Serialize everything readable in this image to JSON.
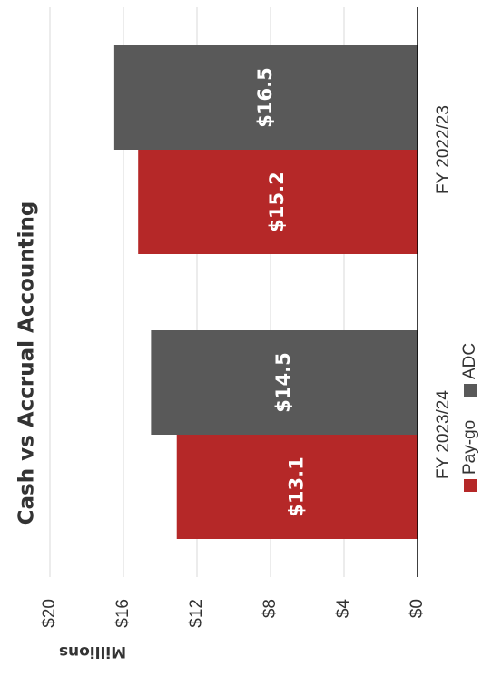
{
  "chart_data": {
    "type": "bar",
    "title": "Cash vs Accrual Accounting",
    "ylabel": "Millions",
    "xlabel": "",
    "categories": [
      "FY 2022/23",
      "FY 2023/24"
    ],
    "series": [
      {
        "name": "Pay-go",
        "values": [
          15.2,
          13.1
        ],
        "labels": [
          "$15.2",
          "$13.1"
        ],
        "color": "#b52828"
      },
      {
        "name": "ADC",
        "values": [
          16.5,
          14.5
        ],
        "labels": [
          "$16.5",
          "$14.5"
        ],
        "color": "#595959"
      }
    ],
    "ylim": [
      0,
      20
    ],
    "yticks": [
      "$0",
      "$4",
      "$8",
      "$12",
      "$16",
      "$20"
    ],
    "grid": true,
    "legend_position": "bottom",
    "orientation": "rotated 90 degrees clockwise"
  }
}
